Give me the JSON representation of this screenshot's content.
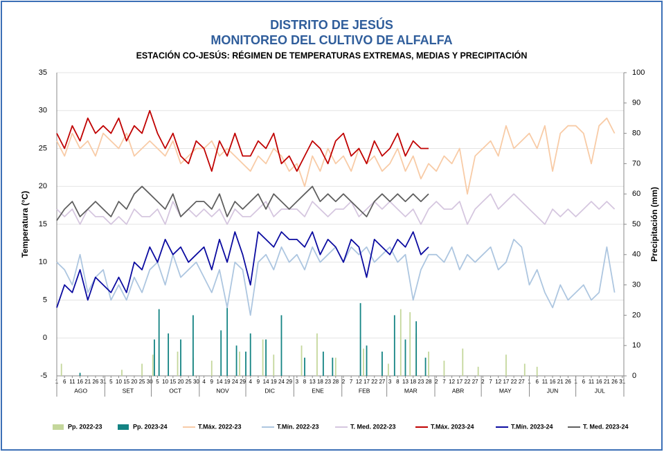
{
  "chart_data": {
    "type": "line",
    "title": "DISTRITO DE JESÚS",
    "subtitle": "MONITOREO DEL CULTIVO DE ALFALFA",
    "subtitle2": "ESTACIÓN CO-JESÚS: RÉGIMEN DE TEMPERATURAS EXTREMAS, MEDIAS Y PRECIPITACIÓN",
    "ylabel": "Temperatura (°C)",
    "y2label": "Precipitación  (mm)",
    "ylim": [
      -5,
      35
    ],
    "yticks": [
      -5,
      0,
      5,
      10,
      15,
      20,
      25,
      30,
      35
    ],
    "y2lim": [
      0,
      100
    ],
    "y2ticks": [
      0,
      10,
      20,
      30,
      40,
      50,
      60,
      70,
      80,
      90,
      100
    ],
    "grid": true,
    "legend": "bottom",
    "xlim": [
      0,
      366
    ],
    "x": [
      0,
      5,
      10,
      15,
      20,
      25,
      30,
      35,
      40,
      45,
      50,
      55,
      60,
      65,
      70,
      75,
      80,
      85,
      90,
      95,
      100,
      105,
      110,
      115,
      120,
      125,
      130,
      135,
      140,
      145,
      150,
      155,
      160,
      165,
      170,
      175,
      180,
      185,
      190,
      195,
      200,
      205,
      210,
      215,
      220,
      225,
      230,
      235,
      240,
      245,
      250,
      255,
      260,
      265,
      270,
      275,
      280,
      285,
      290,
      295,
      300,
      305,
      310,
      315,
      320,
      325,
      330,
      335,
      340,
      345,
      350,
      355,
      360
    ],
    "xticks": [
      {
        "value": 0,
        "label": "1"
      },
      {
        "value": 5,
        "label": "6"
      },
      {
        "value": 10,
        "label": "11"
      },
      {
        "value": 15,
        "label": "16"
      },
      {
        "value": 20,
        "label": "21"
      },
      {
        "value": 25,
        "label": "26"
      },
      {
        "value": 30,
        "label": "31"
      },
      {
        "value": 35,
        "label": "5"
      },
      {
        "value": 40,
        "label": "10"
      },
      {
        "value": 45,
        "label": "15"
      },
      {
        "value": 50,
        "label": "20"
      },
      {
        "value": 55,
        "label": "25"
      },
      {
        "value": 60,
        "label": "30"
      },
      {
        "value": 65,
        "label": "5"
      },
      {
        "value": 70,
        "label": "10"
      },
      {
        "value": 75,
        "label": "15"
      },
      {
        "value": 80,
        "label": "20"
      },
      {
        "value": 85,
        "label": "25"
      },
      {
        "value": 90,
        "label": "30"
      },
      {
        "value": 95,
        "label": "4"
      },
      {
        "value": 100,
        "label": "9"
      },
      {
        "value": 105,
        "label": "14"
      },
      {
        "value": 110,
        "label": "19"
      },
      {
        "value": 115,
        "label": "24"
      },
      {
        "value": 120,
        "label": "29"
      },
      {
        "value": 125,
        "label": "4"
      },
      {
        "value": 130,
        "label": "9"
      },
      {
        "value": 135,
        "label": "14"
      },
      {
        "value": 140,
        "label": "19"
      },
      {
        "value": 145,
        "label": "24"
      },
      {
        "value": 150,
        "label": "29"
      },
      {
        "value": 155,
        "label": "3"
      },
      {
        "value": 160,
        "label": "8"
      },
      {
        "value": 165,
        "label": "13"
      },
      {
        "value": 170,
        "label": "18"
      },
      {
        "value": 175,
        "label": "23"
      },
      {
        "value": 180,
        "label": "28"
      },
      {
        "value": 185,
        "label": "2"
      },
      {
        "value": 190,
        "label": "7"
      },
      {
        "value": 195,
        "label": "12"
      },
      {
        "value": 200,
        "label": "17"
      },
      {
        "value": 205,
        "label": "22"
      },
      {
        "value": 210,
        "label": "27"
      },
      {
        "value": 215,
        "label": "3"
      },
      {
        "value": 220,
        "label": "8"
      },
      {
        "value": 225,
        "label": "13"
      },
      {
        "value": 230,
        "label": "18"
      },
      {
        "value": 235,
        "label": "23"
      },
      {
        "value": 240,
        "label": "28"
      },
      {
        "value": 245,
        "label": "2"
      },
      {
        "value": 250,
        "label": "7"
      },
      {
        "value": 255,
        "label": "12"
      },
      {
        "value": 260,
        "label": "17"
      },
      {
        "value": 265,
        "label": "22"
      },
      {
        "value": 270,
        "label": "27"
      },
      {
        "value": 275,
        "label": "2"
      },
      {
        "value": 280,
        "label": "7"
      },
      {
        "value": 285,
        "label": "12"
      },
      {
        "value": 290,
        "label": "17"
      },
      {
        "value": 295,
        "label": "22"
      },
      {
        "value": 300,
        "label": "27"
      },
      {
        "value": 305,
        "label": "1"
      },
      {
        "value": 310,
        "label": "6"
      },
      {
        "value": 315,
        "label": "11"
      },
      {
        "value": 320,
        "label": "16"
      },
      {
        "value": 325,
        "label": "21"
      },
      {
        "value": 330,
        "label": "26"
      },
      {
        "value": 335,
        "label": "1"
      },
      {
        "value": 340,
        "label": "6"
      },
      {
        "value": 345,
        "label": "11"
      },
      {
        "value": 350,
        "label": "16"
      },
      {
        "value": 355,
        "label": "21"
      },
      {
        "value": 360,
        "label": "26"
      },
      {
        "value": 365,
        "label": "31"
      }
    ],
    "months": [
      {
        "label": "AGO",
        "start": 0,
        "end": 31
      },
      {
        "label": "SET",
        "start": 31,
        "end": 61
      },
      {
        "label": "OCT",
        "start": 61,
        "end": 92
      },
      {
        "label": "NOV",
        "start": 92,
        "end": 122
      },
      {
        "label": "DIC",
        "start": 122,
        "end": 153
      },
      {
        "label": "ENE",
        "start": 153,
        "end": 184
      },
      {
        "label": "FEB",
        "start": 184,
        "end": 213
      },
      {
        "label": "MAR",
        "start": 213,
        "end": 244
      },
      {
        "label": "ABR",
        "start": 244,
        "end": 274
      },
      {
        "label": "MAY",
        "start": 274,
        "end": 305
      },
      {
        "label": "JUN",
        "start": 305,
        "end": 335
      },
      {
        "label": "JUL",
        "start": 335,
        "end": 366
      }
    ],
    "series": [
      {
        "name": "Pp. 2022-23",
        "type": "bar",
        "axis": "y2",
        "color": "#c4d79b",
        "x": [
          3,
          42,
          55,
          62,
          78,
          88,
          100,
          118,
          133,
          140,
          158,
          168,
          180,
          198,
          214,
          222,
          228,
          232,
          240,
          250,
          262,
          272,
          290,
          302,
          310
        ],
        "values": [
          4,
          2,
          4,
          7,
          8,
          6,
          5,
          8,
          12,
          7,
          10,
          14,
          6,
          9,
          4,
          22,
          21,
          14,
          8,
          5,
          9,
          3,
          7,
          4,
          3
        ]
      },
      {
        "name": "Pp. 2023-24",
        "type": "bar",
        "axis": "y2",
        "color": "#138383",
        "x": [
          15,
          63,
          66,
          72,
          80,
          88,
          106,
          110,
          116,
          122,
          125,
          135,
          145,
          160,
          172,
          178,
          196,
          200,
          210,
          218,
          225,
          232,
          238
        ],
        "values": [
          1,
          12,
          22,
          14,
          12,
          20,
          15,
          23,
          10,
          8,
          14,
          12,
          20,
          6,
          8,
          6,
          24,
          10,
          8,
          20,
          12,
          18,
          6
        ]
      },
      {
        "name": "T.Máx. 2022-23",
        "type": "line",
        "color": "#f8cba6",
        "values": [
          26,
          24,
          27,
          25,
          26,
          24,
          27,
          26,
          25,
          27,
          24,
          25,
          26,
          25,
          24,
          26,
          23,
          24,
          25,
          25,
          26,
          24,
          25,
          24,
          23,
          22,
          24,
          23,
          25,
          24,
          22,
          23,
          20,
          24,
          22,
          25,
          23,
          24,
          22,
          25,
          23,
          24,
          22,
          23,
          25,
          22,
          24,
          21,
          23,
          22,
          24,
          23,
          25,
          19,
          24,
          25,
          26,
          24,
          28,
          25,
          26,
          27,
          25,
          28,
          22,
          27,
          28,
          28,
          27,
          23,
          28,
          29,
          27
        ]
      },
      {
        "name": "T.Mín. 2022-23",
        "type": "line",
        "color": "#adc6e0",
        "values": [
          10,
          9,
          7,
          11,
          6,
          8,
          9,
          5,
          7,
          5,
          8,
          6,
          9,
          10,
          7,
          11,
          8,
          9,
          10,
          8,
          6,
          9,
          4,
          10,
          9,
          3,
          10,
          11,
          9,
          12,
          10,
          11,
          9,
          12,
          10,
          11,
          12,
          10,
          12,
          11,
          12,
          10,
          11,
          12,
          10,
          11,
          5,
          9,
          11,
          11,
          10,
          12,
          9,
          11,
          10,
          11,
          12,
          9,
          10,
          13,
          12,
          7,
          9,
          6,
          4,
          7,
          5,
          6,
          7,
          5,
          6,
          12,
          6
        ]
      },
      {
        "name": "T. Med. 2022-23",
        "type": "line",
        "color": "#d5c6df",
        "values": [
          17,
          16,
          17,
          15,
          17,
          16,
          16,
          15,
          16,
          15,
          17,
          16,
          16,
          17,
          15,
          18,
          16,
          17,
          16,
          17,
          16,
          17,
          15,
          17,
          16,
          16,
          17,
          18,
          16,
          17,
          17,
          17,
          16,
          18,
          17,
          16,
          17,
          17,
          18,
          16,
          17,
          18,
          17,
          18,
          17,
          16,
          17,
          15,
          17,
          18,
          17,
          17,
          18,
          15,
          17,
          18,
          19,
          17,
          18,
          19,
          18,
          17,
          16,
          15,
          17,
          16,
          17,
          16,
          17,
          18,
          17,
          18,
          17
        ]
      },
      {
        "name": "T.Máx. 2023-24",
        "type": "line",
        "color": "#c00000",
        "values": [
          27,
          25,
          28,
          26,
          29,
          27,
          28,
          27,
          29,
          26,
          28,
          27,
          30,
          27,
          25,
          27,
          24,
          23,
          26,
          25,
          22,
          26,
          24,
          27,
          24,
          24,
          26,
          25,
          27,
          23,
          24,
          22,
          24,
          26,
          25,
          23,
          26,
          27,
          24,
          25,
          23,
          26,
          24,
          25,
          27,
          24,
          26,
          25,
          25,
          null,
          null,
          null,
          null,
          null,
          null,
          null,
          null,
          null,
          null,
          null,
          null,
          null,
          null,
          null,
          null,
          null,
          null,
          null,
          null,
          null,
          null,
          null,
          null
        ]
      },
      {
        "name": "T.Mín. 2023-24",
        "type": "line",
        "color": "#0b0ba0",
        "values": [
          4,
          7,
          6,
          9,
          5,
          8,
          7,
          6,
          8,
          6,
          10,
          9,
          12,
          10,
          13,
          11,
          12,
          10,
          11,
          12,
          9,
          13,
          10,
          14,
          11,
          7,
          14,
          13,
          12,
          14,
          13,
          13,
          12,
          14,
          11,
          13,
          12,
          10,
          13,
          12,
          8,
          13,
          12,
          11,
          13,
          12,
          14,
          11,
          12,
          null,
          null,
          null,
          null,
          null,
          null,
          null,
          null,
          null,
          null,
          null,
          null,
          null,
          null,
          null,
          null,
          null,
          null,
          null,
          null,
          null,
          null,
          null,
          null
        ]
      },
      {
        "name": "T. Med. 2023-24",
        "type": "line",
        "color": "#5f5f5f",
        "values": [
          15.5,
          17,
          18,
          16,
          17,
          18,
          17,
          16,
          18,
          17,
          19,
          20,
          19,
          18,
          17,
          19,
          16,
          17,
          18,
          18,
          17,
          19,
          16,
          18,
          17,
          18,
          19,
          17,
          19,
          18,
          17,
          18,
          19,
          20,
          18,
          19,
          18,
          19,
          18,
          17,
          16,
          18,
          19,
          18,
          19,
          18,
          19,
          18,
          19,
          null,
          null,
          null,
          null,
          null,
          null,
          null,
          null,
          null,
          null,
          null,
          null,
          null,
          null,
          null,
          null,
          null,
          null,
          null,
          null,
          null,
          null,
          null,
          null
        ]
      }
    ]
  }
}
